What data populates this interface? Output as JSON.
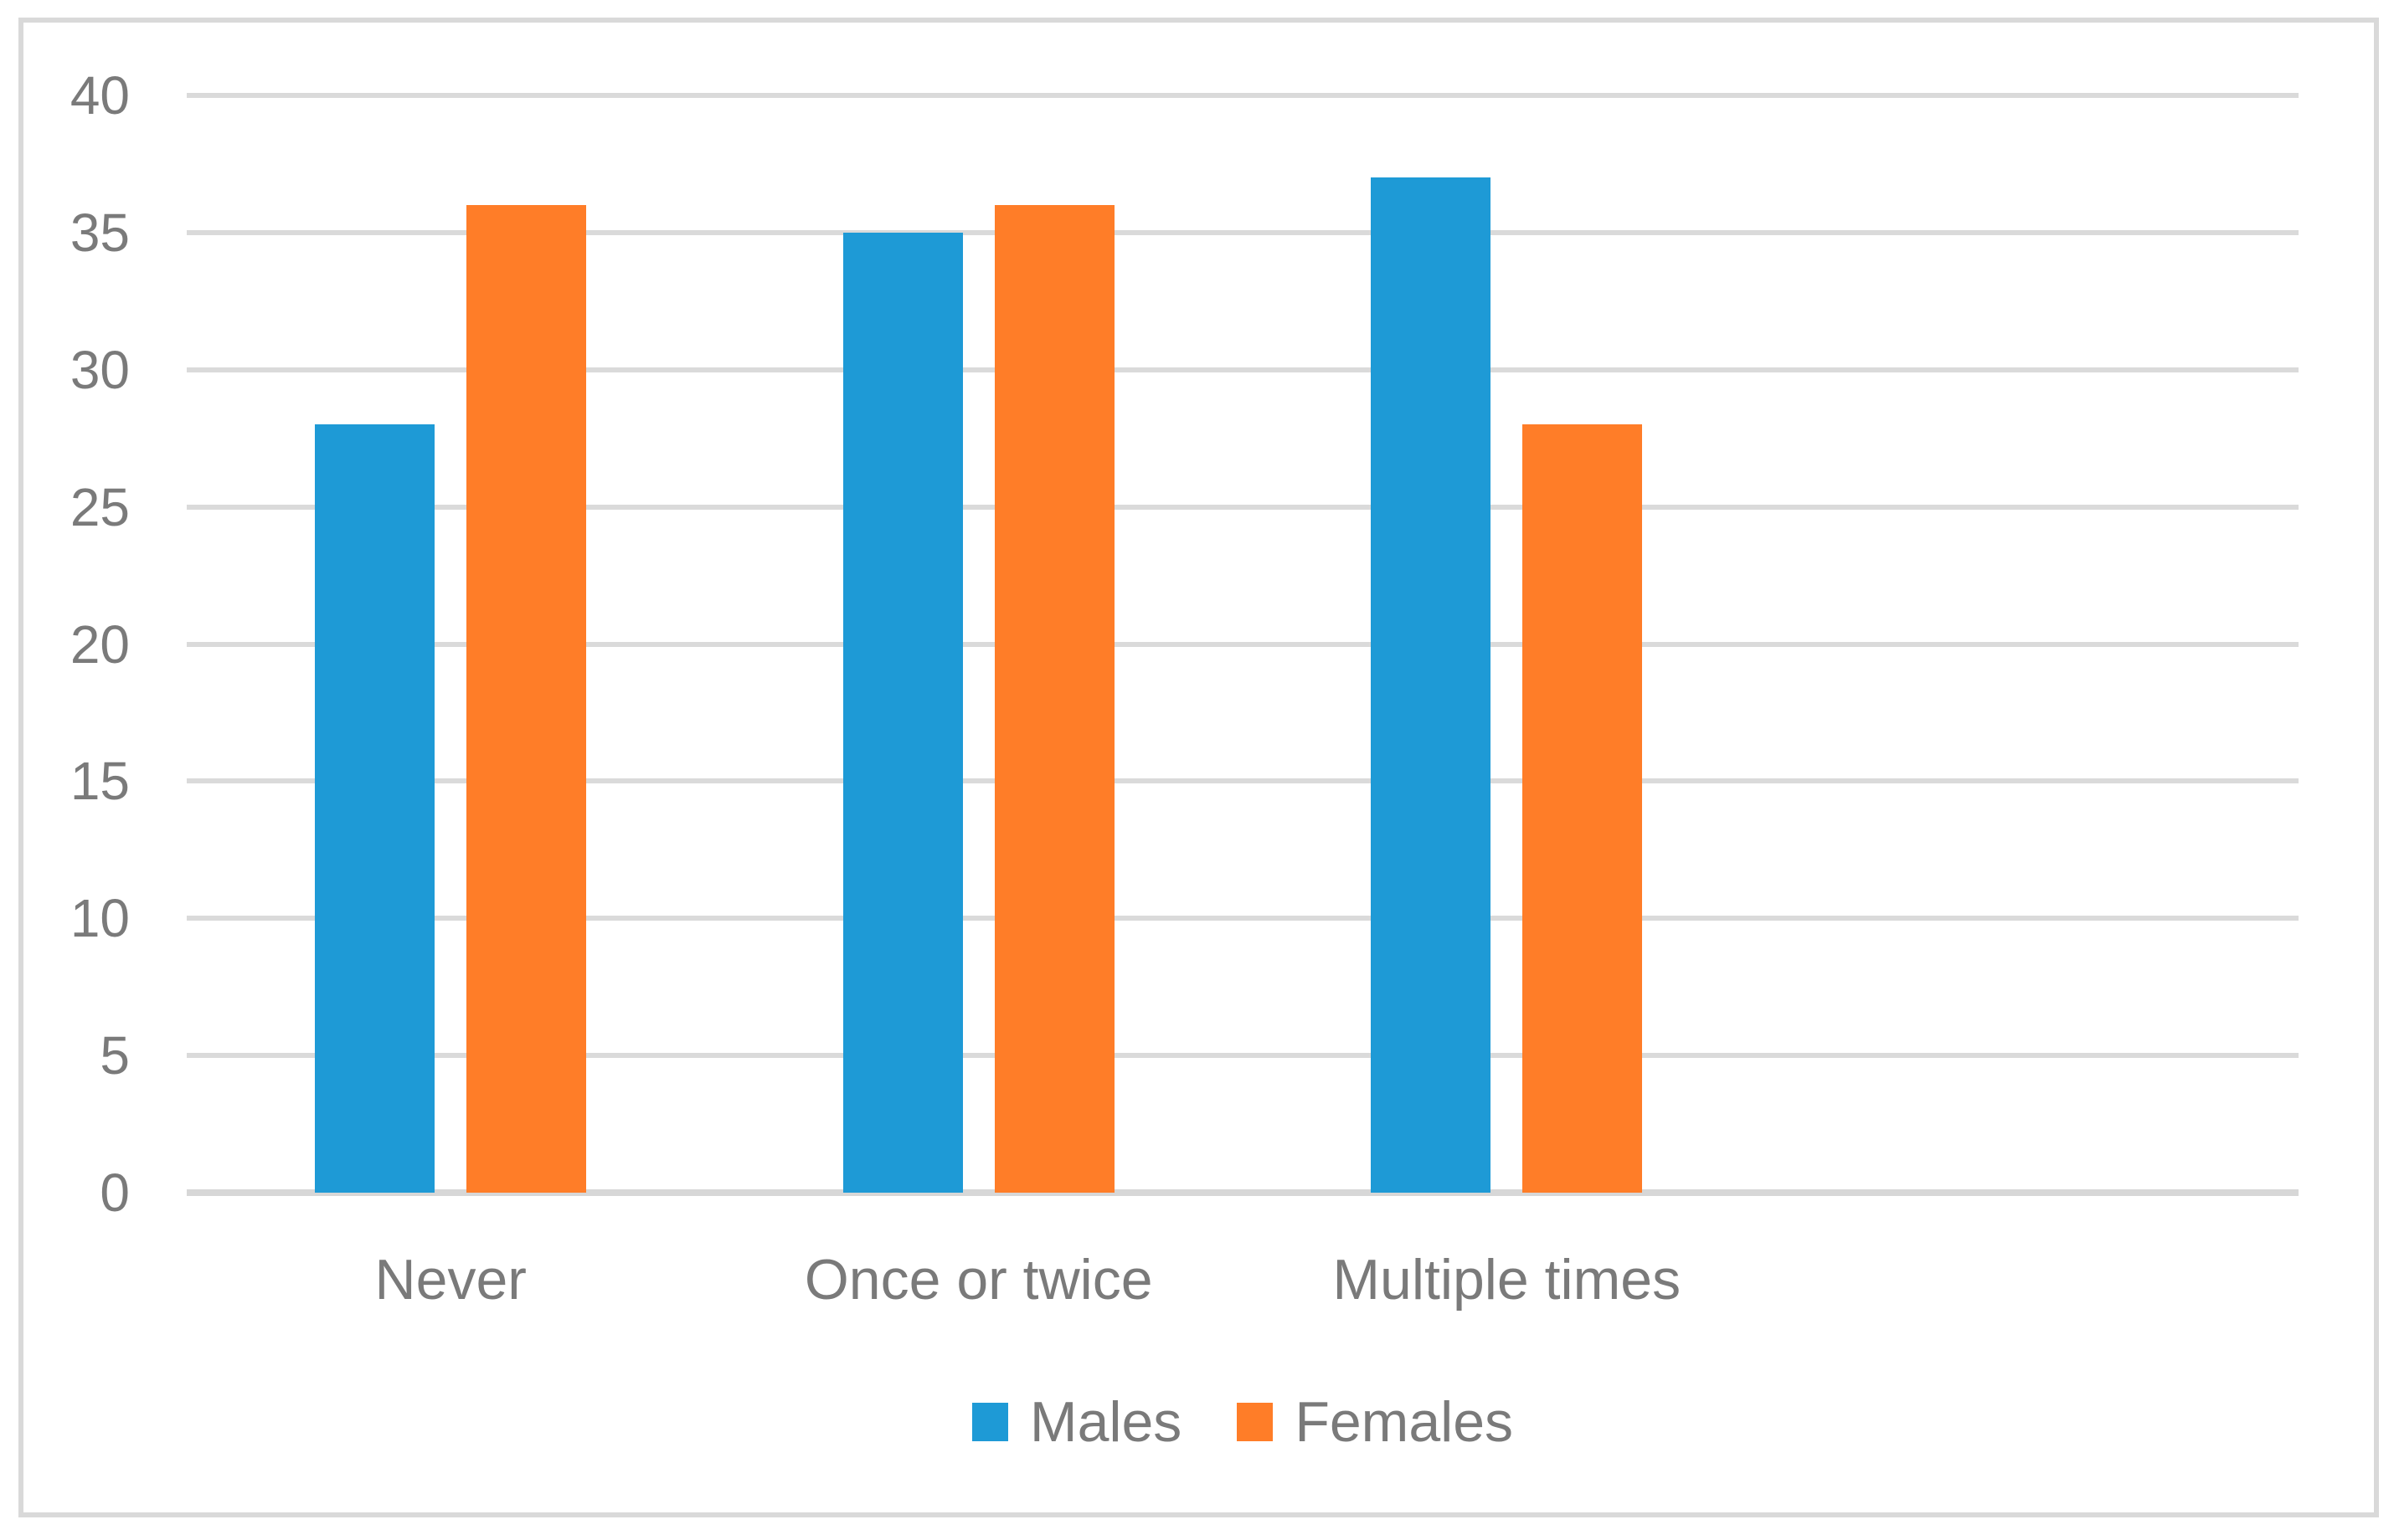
{
  "chart_data": {
    "type": "bar",
    "title": "",
    "xlabel": "",
    "ylabel": "",
    "categories": [
      "Never",
      "Once or twice",
      "Multiple times"
    ],
    "series": [
      {
        "name": "Males",
        "color": "#1e9ad6",
        "values": [
          28,
          35,
          37
        ]
      },
      {
        "name": "Females",
        "color": "#ff7d28",
        "values": [
          36,
          36,
          28
        ]
      }
    ],
    "ylim": [
      0,
      40
    ],
    "ytick_step": 5,
    "yticks": [
      0,
      5,
      10,
      15,
      20,
      25,
      30,
      35,
      40
    ],
    "grid": true,
    "gridline_color": "#dadada",
    "axis_line_color": "#d7d7d7",
    "frame_border_color": "#d9d9d9",
    "text_color": "#7a7a7a",
    "background_color": "#ffffff",
    "legend_position": "bottom",
    "category_slots": 4
  }
}
